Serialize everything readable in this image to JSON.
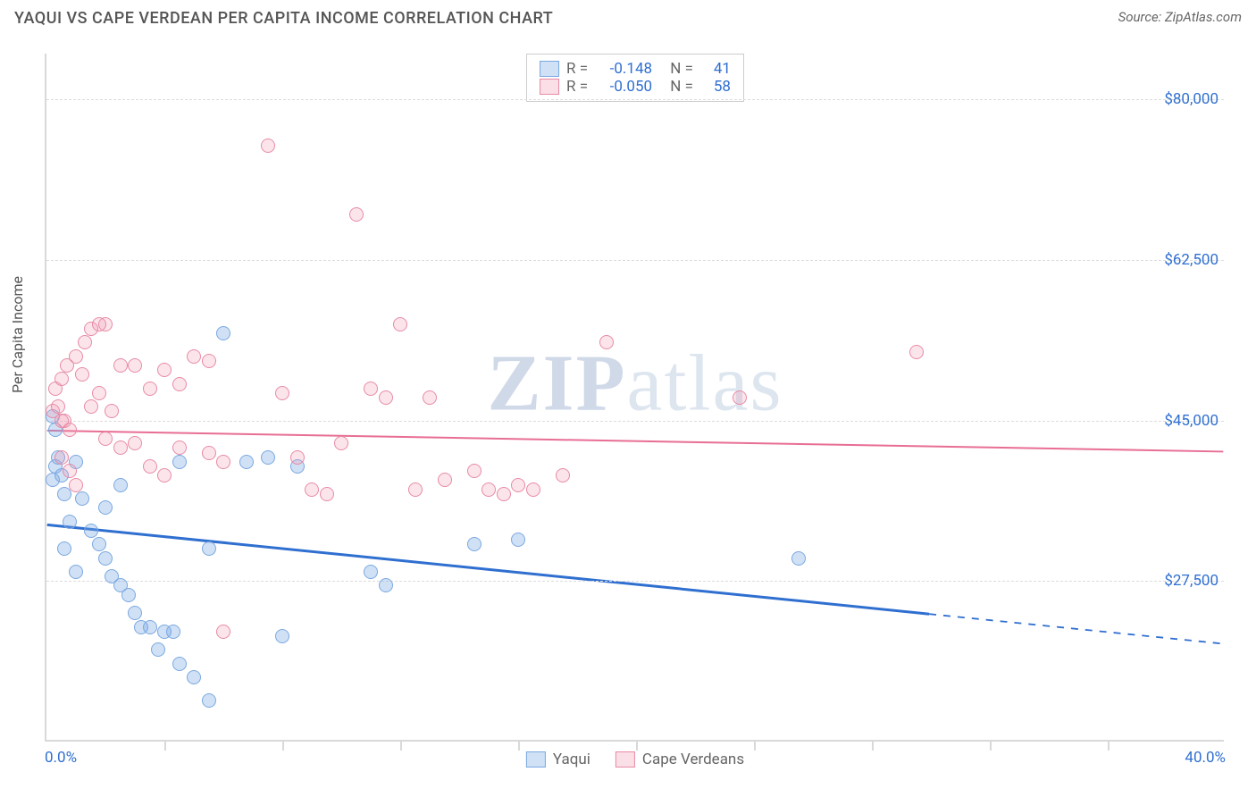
{
  "title": "YAQUI VS CAPE VERDEAN PER CAPITA INCOME CORRELATION CHART",
  "source": "Source: ZipAtlas.com",
  "ylabel": "Per Capita Income",
  "watermark_zip": "ZIP",
  "watermark_atlas": "atlas",
  "chart": {
    "type": "scatter",
    "xlim": [
      0,
      40
    ],
    "ylim": [
      10000,
      85000
    ],
    "xticks_pct": [
      0,
      4,
      8,
      12,
      16,
      20,
      24,
      28,
      32,
      36,
      40
    ],
    "x_axis_labels": {
      "min": "0.0%",
      "max": "40.0%"
    },
    "y_gridlines": [
      27500,
      45000,
      62500,
      80000
    ],
    "y_labels": [
      "$27,500",
      "$45,000",
      "$62,500",
      "$80,000"
    ],
    "grid_color": "#dcdcdc",
    "axis_color": "#d9d9d9",
    "background_color": "#ffffff",
    "label_color": "#2f6fd0"
  },
  "series": [
    {
      "name": "Yaqui",
      "color_fill": "rgba(120,170,230,0.35)",
      "color_stroke": "#7aa8e0",
      "r": -0.148,
      "n": 41,
      "trend": {
        "y_at_x0": 33500,
        "y_at_x40": 20500,
        "solid_until_x": 30,
        "color": "#2f6fd0",
        "width": 3
      },
      "points": [
        [
          0.2,
          45500
        ],
        [
          0.3,
          40000
        ],
        [
          0.4,
          41000
        ],
        [
          0.5,
          39000
        ],
        [
          0.6,
          37000
        ],
        [
          0.3,
          44000
        ],
        [
          0.2,
          38500
        ],
        [
          1.0,
          40500
        ],
        [
          1.2,
          36500
        ],
        [
          1.5,
          33000
        ],
        [
          0.8,
          34000
        ],
        [
          0.6,
          31000
        ],
        [
          1.8,
          31500
        ],
        [
          2.0,
          30000
        ],
        [
          1.0,
          28500
        ],
        [
          2.2,
          28000
        ],
        [
          2.5,
          27000
        ],
        [
          2.8,
          26000
        ],
        [
          3.0,
          24000
        ],
        [
          3.2,
          22500
        ],
        [
          3.5,
          22500
        ],
        [
          4.0,
          22000
        ],
        [
          4.3,
          22000
        ],
        [
          3.8,
          20000
        ],
        [
          4.5,
          18500
        ],
        [
          5.0,
          17000
        ],
        [
          5.5,
          14500
        ],
        [
          6.0,
          54500
        ],
        [
          2.0,
          35500
        ],
        [
          2.5,
          38000
        ],
        [
          4.5,
          40500
        ],
        [
          5.5,
          31000
        ],
        [
          6.8,
          40500
        ],
        [
          7.5,
          41000
        ],
        [
          8.0,
          21500
        ],
        [
          8.5,
          40000
        ],
        [
          11.0,
          28500
        ],
        [
          11.5,
          27000
        ],
        [
          14.5,
          31500
        ],
        [
          16.0,
          32000
        ],
        [
          25.5,
          30000
        ]
      ]
    },
    {
      "name": "Cape Verdeans",
      "color_fill": "rgba(240,150,175,0.25)",
      "color_stroke": "#e88aa5",
      "r": -0.05,
      "n": 58,
      "trend": {
        "y_at_x0": 43800,
        "y_at_x40": 41500,
        "solid_until_x": 40,
        "color": "#e86e94",
        "width": 2
      },
      "points": [
        [
          0.2,
          46000
        ],
        [
          0.4,
          46500
        ],
        [
          0.6,
          45000
        ],
        [
          0.3,
          48500
        ],
        [
          0.5,
          49500
        ],
        [
          0.7,
          51000
        ],
        [
          1.0,
          52000
        ],
        [
          1.2,
          50000
        ],
        [
          1.5,
          55000
        ],
        [
          2.0,
          55500
        ],
        [
          2.5,
          51000
        ],
        [
          1.8,
          48000
        ],
        [
          2.2,
          46000
        ],
        [
          3.0,
          51000
        ],
        [
          3.5,
          48500
        ],
        [
          4.0,
          50500
        ],
        [
          4.5,
          49000
        ],
        [
          5.0,
          52000
        ],
        [
          5.5,
          51500
        ],
        [
          2.0,
          43000
        ],
        [
          2.5,
          42000
        ],
        [
          3.0,
          42500
        ],
        [
          3.5,
          40000
        ],
        [
          4.0,
          39000
        ],
        [
          4.5,
          42000
        ],
        [
          5.5,
          41500
        ],
        [
          6.0,
          40500
        ],
        [
          7.5,
          75000
        ],
        [
          8.0,
          48000
        ],
        [
          8.5,
          41000
        ],
        [
          9.0,
          37500
        ],
        [
          9.5,
          37000
        ],
        [
          10.0,
          42500
        ],
        [
          10.5,
          67500
        ],
        [
          11.0,
          48500
        ],
        [
          11.5,
          47500
        ],
        [
          12.0,
          55500
        ],
        [
          12.5,
          37500
        ],
        [
          13.0,
          47500
        ],
        [
          13.5,
          38500
        ],
        [
          14.5,
          39500
        ],
        [
          15.0,
          37500
        ],
        [
          15.5,
          37000
        ],
        [
          16.0,
          38000
        ],
        [
          16.5,
          37500
        ],
        [
          17.5,
          39000
        ],
        [
          19.0,
          53500
        ],
        [
          6.0,
          22000
        ],
        [
          0.5,
          41000
        ],
        [
          0.8,
          39500
        ],
        [
          1.0,
          38000
        ],
        [
          1.3,
          53500
        ],
        [
          1.5,
          46500
        ],
        [
          1.8,
          55500
        ],
        [
          23.5,
          47500
        ],
        [
          29.5,
          52500
        ],
        [
          0.5,
          45000
        ],
        [
          0.8,
          44000
        ]
      ]
    }
  ],
  "legend_top": {
    "r_label": "R =",
    "n_label": "N =",
    "r1": "-0.148",
    "n1": "41",
    "r2": "-0.050",
    "n2": "58"
  },
  "legend_bottom": {
    "series1": "Yaqui",
    "series2": "Cape Verdeans"
  }
}
